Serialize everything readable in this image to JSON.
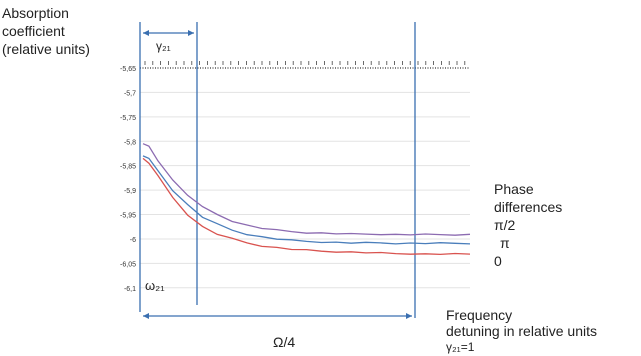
{
  "chart_data": {
    "type": "line",
    "ylabel_lines": [
      "Absorption",
      "coefficient",
      "(relative units)"
    ],
    "xlabel_lines": [
      "Frequency",
      "detuning in relative units",
      "γ₂₁=1"
    ],
    "legend_title_lines": [
      "Phase",
      "differences"
    ],
    "series": [
      {
        "name": "π/2",
        "color": "#8c6bb1",
        "x": [
          0,
          0.02,
          0.05,
          0.1,
          0.15,
          0.2,
          0.25,
          0.3,
          0.35,
          0.4,
          0.45,
          0.5,
          0.55,
          0.6,
          0.65,
          0.7,
          0.75,
          0.8,
          0.85,
          0.9,
          0.95,
          1.0,
          1.05,
          1.1
        ],
        "y": [
          -5.805,
          -5.81,
          -5.84,
          -5.88,
          -5.91,
          -5.935,
          -5.95,
          -5.963,
          -5.972,
          -5.978,
          -5.982,
          -5.985,
          -5.987,
          -5.988,
          -5.989,
          -5.99,
          -5.99,
          -5.99,
          -5.991,
          -5.991,
          -5.991,
          -5.991,
          -5.991,
          -5.991
        ]
      },
      {
        "name": "π",
        "color": "#4a7ebb",
        "x": [
          0,
          0.02,
          0.05,
          0.1,
          0.15,
          0.2,
          0.25,
          0.3,
          0.35,
          0.4,
          0.45,
          0.5,
          0.55,
          0.6,
          0.65,
          0.7,
          0.75,
          0.8,
          0.85,
          0.9,
          0.95,
          1.0,
          1.05,
          1.1
        ],
        "y": [
          -5.83,
          -5.835,
          -5.86,
          -5.9,
          -5.93,
          -5.955,
          -5.97,
          -5.982,
          -5.99,
          -5.996,
          -6.0,
          -6.003,
          -6.005,
          -6.006,
          -6.007,
          -6.008,
          -6.008,
          -6.008,
          -6.009,
          -6.009,
          -6.009,
          -6.009,
          -6.009,
          -6.009
        ]
      },
      {
        "name": "0",
        "color": "#d9534f",
        "x": [
          0,
          0.02,
          0.05,
          0.1,
          0.15,
          0.2,
          0.25,
          0.3,
          0.35,
          0.4,
          0.45,
          0.5,
          0.55,
          0.6,
          0.65,
          0.7,
          0.75,
          0.8,
          0.85,
          0.9,
          0.95,
          1.0,
          1.05,
          1.1
        ],
        "y": [
          -5.835,
          -5.845,
          -5.87,
          -5.915,
          -5.95,
          -5.975,
          -5.99,
          -6.0,
          -6.008,
          -6.014,
          -6.018,
          -6.021,
          -6.023,
          -6.025,
          -6.026,
          -6.027,
          -6.028,
          -6.029,
          -6.03,
          -6.03,
          -6.031,
          -6.031,
          -6.031,
          -6.031
        ]
      }
    ],
    "yticks": [
      "-5,65",
      "-5,7",
      "-5,75",
      "-5,8",
      "-5,85",
      "-5,9",
      "-5,95",
      "-6",
      "-6,05",
      "-6,1"
    ],
    "ylim": [
      -6.125,
      -5.65
    ],
    "xlim": [
      0,
      1.1
    ],
    "gridlines": true,
    "annotations": {
      "gamma_top": "γ₂₁",
      "omega": "ω₂₁",
      "omega_over_4": "Ω/4"
    }
  }
}
